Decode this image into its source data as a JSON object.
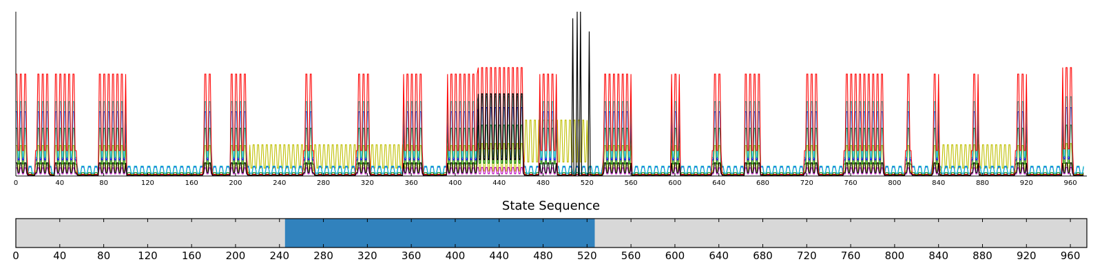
{
  "chart_data": [
    {
      "type": "line",
      "title": "",
      "xlabel": "",
      "ylabel": "",
      "xlim": [
        0,
        975
      ],
      "ylim": [
        0,
        1.0
      ],
      "grid": false,
      "x_ticks": [
        0,
        40,
        80,
        120,
        160,
        200,
        240,
        280,
        320,
        360,
        400,
        440,
        480,
        520,
        560,
        600,
        640,
        680,
        720,
        760,
        800,
        840,
        880,
        920,
        960
      ],
      "series_colors": {
        "red": "#ff0000",
        "cyan": "#00bfbf",
        "blue": "#0000ff",
        "green": "#007f00",
        "yellow": "#bfbf00",
        "magenta": "#bf00bf",
        "black": "#000000"
      },
      "series": [
        {
          "color": "red",
          "peak_levels": [
            {
              "x": [
                0,
                10
              ],
              "y": 0.62
            },
            {
              "x": [
                18,
                30
              ],
              "y": 0.62
            },
            {
              "x": [
                36,
                55
              ],
              "y": 0.62
            },
            {
              "x": [
                76,
                100
              ],
              "y": 0.62
            },
            {
              "x": [
                171,
                178
              ],
              "y": 0.62
            },
            {
              "x": [
                196,
                210
              ],
              "y": 0.62
            },
            {
              "x": [
                262,
                271
              ],
              "y": 0.62
            },
            {
              "x": [
                310,
                322
              ],
              "y": 0.62
            },
            {
              "x": [
                353,
                370
              ],
              "y": 0.62
            },
            {
              "x": [
                393,
                420
              ],
              "y": 0.62
            },
            {
              "x": [
                420,
                462
              ],
              "y": 0.66
            },
            {
              "x": [
                477,
                492
              ],
              "y": 0.62
            },
            {
              "x": [
                535,
                560
              ],
              "y": 0.62
            },
            {
              "x": [
                597,
                604
              ],
              "y": 0.62
            },
            {
              "x": [
                634,
                642
              ],
              "y": 0.62
            },
            {
              "x": [
                664,
                677
              ],
              "y": 0.62
            },
            {
              "x": [
                718,
                730
              ],
              "y": 0.62
            },
            {
              "x": [
                754,
                790
              ],
              "y": 0.62
            },
            {
              "x": [
                810,
                815
              ],
              "y": 0.62
            },
            {
              "x": [
                835,
                840
              ],
              "y": 0.62
            },
            {
              "x": [
                870,
                876
              ],
              "y": 0.62
            },
            {
              "x": [
                910,
                920
              ],
              "y": 0.62
            },
            {
              "x": [
                953,
                962
              ],
              "y": 0.66
            }
          ]
        },
        {
          "color": "black",
          "spikes": [
            {
              "x": 507,
              "y": 0.96
            },
            {
              "x": 511,
              "y": 1.0
            },
            {
              "x": 514,
              "y": 1.0
            },
            {
              "x": 522,
              "y": 0.88
            }
          ]
        },
        {
          "color": "yellow",
          "plateaus": [
            {
              "x": [
                213,
                262
              ],
              "y": 0.19
            },
            {
              "x": [
                272,
                310
              ],
              "y": 0.19
            },
            {
              "x": [
                322,
                358
              ],
              "y": 0.19
            },
            {
              "x": [
                462,
                520
              ],
              "y": 0.34
            },
            {
              "x": [
                842,
                905
              ],
              "y": 0.19
            }
          ]
        }
      ]
    },
    {
      "type": "heatmap",
      "title": "State Sequence",
      "xlim": [
        0,
        975
      ],
      "x_ticks": [
        0,
        40,
        80,
        120,
        160,
        200,
        240,
        280,
        320,
        360,
        400,
        440,
        480,
        520,
        560,
        600,
        640,
        680,
        720,
        760,
        800,
        840,
        880,
        920,
        960
      ],
      "segments": [
        {
          "x": [
            0,
            245
          ],
          "color": "#d8d8d8"
        },
        {
          "x": [
            245,
            527
          ],
          "color": "#3182bd"
        },
        {
          "x": [
            527,
            975
          ],
          "color": "#d8d8d8"
        }
      ]
    }
  ]
}
